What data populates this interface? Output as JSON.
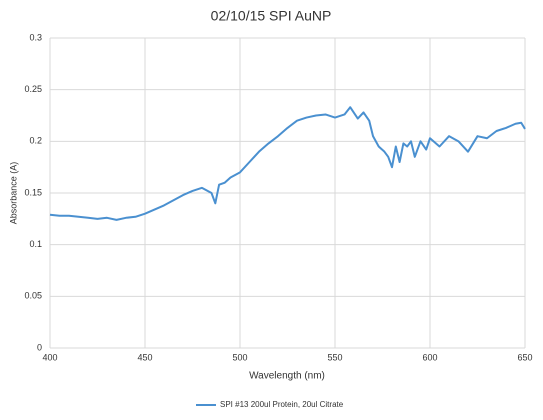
{
  "chart_data": {
    "type": "line",
    "title": "02/10/15 SPI AuNP",
    "x_label": "Wavelength (nm)",
    "y_label": "Absorbance (A)",
    "x": [
      400,
      405,
      410,
      415,
      420,
      425,
      430,
      435,
      440,
      445,
      450,
      455,
      460,
      465,
      470,
      475,
      480,
      485,
      487,
      489,
      492,
      495,
      500,
      505,
      510,
      515,
      520,
      525,
      530,
      535,
      540,
      545,
      550,
      555,
      558,
      562,
      565,
      568,
      570,
      573,
      576,
      578,
      580,
      582,
      584,
      586,
      588,
      590,
      592,
      595,
      598,
      600,
      605,
      610,
      615,
      620,
      625,
      630,
      635,
      640,
      645,
      648,
      650
    ],
    "series": [
      {
        "name": "SPI #13 200ul Protein, 20ul Citrate",
        "color": "#4a90d0",
        "values": [
          0.129,
          0.128,
          0.128,
          0.127,
          0.126,
          0.125,
          0.126,
          0.124,
          0.126,
          0.127,
          0.13,
          0.134,
          0.138,
          0.143,
          0.148,
          0.152,
          0.155,
          0.15,
          0.14,
          0.158,
          0.16,
          0.165,
          0.17,
          0.18,
          0.19,
          0.198,
          0.205,
          0.213,
          0.22,
          0.223,
          0.225,
          0.226,
          0.223,
          0.226,
          0.233,
          0.222,
          0.228,
          0.22,
          0.205,
          0.195,
          0.19,
          0.185,
          0.175,
          0.195,
          0.18,
          0.198,
          0.195,
          0.2,
          0.185,
          0.2,
          0.192,
          0.203,
          0.195,
          0.205,
          0.2,
          0.19,
          0.205,
          0.203,
          0.21,
          0.213,
          0.217,
          0.218,
          0.212
        ]
      }
    ],
    "xlim": [
      400,
      650
    ],
    "xticks": [
      400,
      450,
      500,
      550,
      600,
      650
    ],
    "ylim": [
      0,
      0.3
    ],
    "yticks": [
      0,
      0.05,
      0.1,
      0.15,
      0.2,
      0.25,
      0.3
    ],
    "grid": true,
    "legend": "bottom"
  }
}
